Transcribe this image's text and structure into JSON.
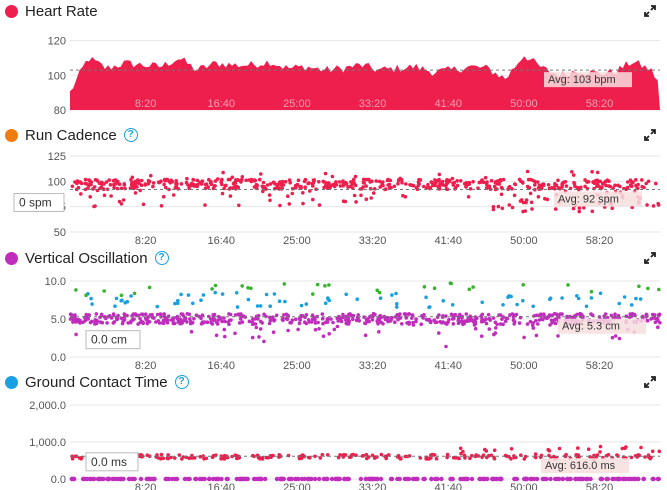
{
  "colors": {
    "heart_rate": "#ee1f4d",
    "cadence_dot": "#f07c0b",
    "vo_dot": "#c02dbd",
    "gct_dot": "#1aa0e0",
    "points_red": "#ee1f4d",
    "points_purple": "#c02dbd",
    "points_blue": "#1aa0e0",
    "points_green": "#38b32d",
    "help": "#1aa0e0"
  },
  "panels": {
    "heart_rate": {
      "title": "Heart Rate",
      "expand_icon": "expand-icon"
    },
    "run_cadence": {
      "title": "Run Cadence",
      "expand_icon": "expand-icon",
      "cursor_label": "0 spm"
    },
    "vertical_oscillation": {
      "title": "Vertical Oscillation",
      "expand_icon": "expand-icon",
      "cursor_label": "0.0 cm"
    },
    "ground_contact_time": {
      "title": "Ground Contact Time",
      "expand_icon": "expand-icon",
      "cursor_label": "0.0 ms"
    }
  },
  "chart_data": [
    {
      "type": "area",
      "title": "Heart Rate",
      "x_ticks": [
        "8:20",
        "16:40",
        "25:00",
        "33:20",
        "41:40",
        "50:00",
        "58:20"
      ],
      "y_ticks": [
        "80",
        "100",
        "120"
      ],
      "ylim": [
        80,
        125
      ],
      "x_range_min": [
        0,
        65
      ],
      "avg": 103,
      "avg_label": "Avg: 103 bpm",
      "x_minutes": [
        0,
        2,
        4,
        6,
        8,
        10,
        12,
        14,
        16,
        18,
        20,
        22,
        24,
        26,
        28,
        30,
        32,
        34,
        36,
        38,
        40,
        42,
        44,
        46,
        48,
        50,
        52,
        54,
        56,
        58,
        60,
        62,
        64,
        65
      ],
      "values": [
        90,
        110,
        104,
        107,
        106,
        105,
        110,
        103,
        107,
        106,
        106,
        108,
        104,
        105,
        103,
        104,
        106,
        103,
        104,
        105,
        102,
        103,
        105,
        104,
        98,
        112,
        104,
        100,
        103,
        101,
        102,
        108,
        103,
        95
      ]
    },
    {
      "type": "scatter",
      "title": "Run Cadence",
      "x_ticks": [
        "8:20",
        "16:40",
        "25:00",
        "33:20",
        "41:40",
        "50:00",
        "58:20"
      ],
      "y_ticks": [
        "50",
        "75",
        "100",
        "125"
      ],
      "ylim": [
        50,
        125
      ],
      "avg": 92,
      "avg_label": "Avg: 92 spm",
      "series": [
        {
          "color": "red",
          "typical": 97,
          "spread": "60-115"
        }
      ]
    },
    {
      "type": "scatter",
      "title": "Vertical Oscillation",
      "x_ticks": [
        "8:20",
        "16:40",
        "25:00",
        "33:20",
        "41:40",
        "50:00",
        "58:20"
      ],
      "y_ticks": [
        "0.0",
        "5.0",
        "10.0"
      ],
      "ylim": [
        0,
        10
      ],
      "avg": 5.3,
      "avg_label": "Avg: 5.3 cm",
      "series": [
        {
          "color": "purple",
          "typical": 5
        },
        {
          "color": "blue",
          "typical": 7.5
        },
        {
          "color": "green",
          "typical": 8.5
        }
      ]
    },
    {
      "type": "scatter",
      "title": "Ground Contact Time",
      "x_ticks": [
        "8:20",
        "16:40",
        "25:00",
        "33:20",
        "41:40",
        "50:00",
        "58:20"
      ],
      "y_ticks": [
        "0.0",
        "1,000.0",
        "2,000.0"
      ],
      "ylim": [
        0,
        2000
      ],
      "avg": 616.0,
      "avg_label": "Avg: 616.0 ms",
      "series": [
        {
          "color": "red",
          "typical": 620
        },
        {
          "color": "purple",
          "typical": 0
        }
      ]
    }
  ]
}
